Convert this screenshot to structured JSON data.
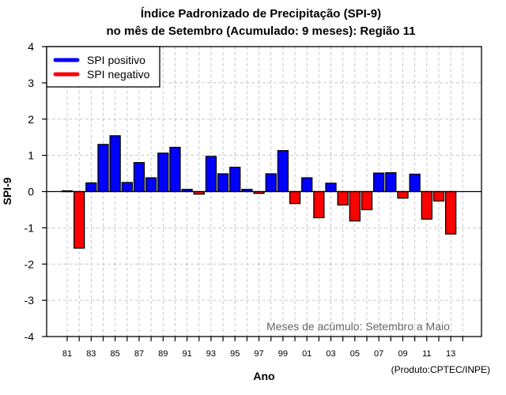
{
  "chart_data": {
    "type": "bar",
    "title_lines": [
      "Índice Padronizado de Precipitação (SPI-9)",
      "no mês de Setembro (Acumulado: 9 meses): Região 11"
    ],
    "xlabel": "Ano",
    "ylabel": "SPI-9",
    "ylim": [
      -4,
      4
    ],
    "yticks": [
      -4,
      -3,
      -2,
      -1,
      0,
      1,
      2,
      3,
      4
    ],
    "grid": true,
    "legend_position": "top-left",
    "legend": [
      {
        "label": "SPI positivo",
        "color": "#0000ff"
      },
      {
        "label": "SPI negativo",
        "color": "#ff0000"
      }
    ],
    "categories": [
      "1981",
      "1982",
      "1983",
      "1984",
      "1985",
      "1986",
      "1987",
      "1988",
      "1989",
      "1990",
      "1991",
      "1992",
      "1993",
      "1994",
      "1995",
      "1996",
      "1997",
      "1998",
      "1999",
      "2000",
      "2001",
      "2002",
      "2003",
      "2004",
      "2005",
      "2006",
      "2007",
      "2008",
      "2009",
      "2010",
      "2011",
      "2012",
      "2013"
    ],
    "xtick_labels": [
      "81",
      "83",
      "85",
      "87",
      "89",
      "91",
      "93",
      "95",
      "97",
      "99",
      "01",
      "03",
      "05",
      "07",
      "09",
      "11",
      "13"
    ],
    "values": [
      0.02,
      -1.56,
      0.24,
      1.3,
      1.54,
      0.25,
      0.8,
      0.38,
      1.06,
      1.22,
      0.06,
      -0.07,
      0.97,
      0.49,
      0.67,
      0.06,
      -0.05,
      0.49,
      1.13,
      -0.33,
      0.38,
      -0.72,
      0.23,
      -0.37,
      -0.81,
      -0.5,
      0.51,
      0.52,
      -0.18,
      0.48,
      -0.76,
      -0.26,
      -1.17
    ],
    "annotation": "Meses de acúmulo: Setembro a Maio",
    "credit": "(Produto:CPTEC/INPE)",
    "colors": {
      "positive": "#0000ff",
      "negative": "#ff0000",
      "grid": "#c8c8c8"
    }
  }
}
